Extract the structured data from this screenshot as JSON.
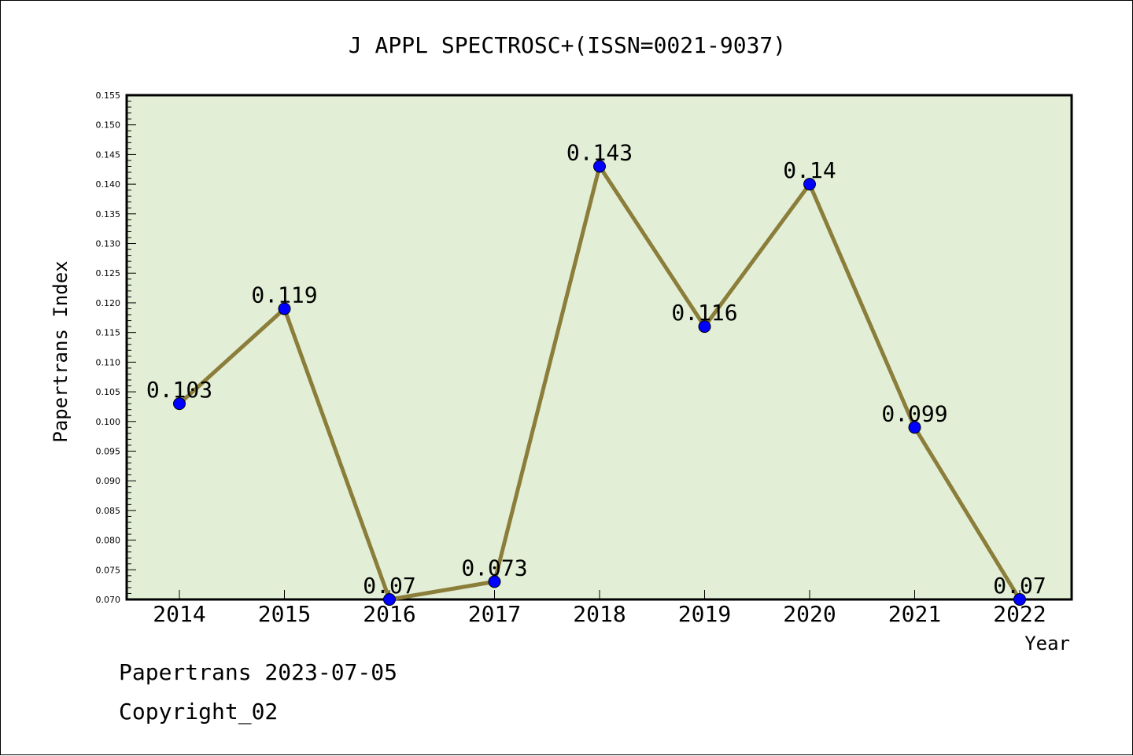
{
  "chart_data": {
    "type": "line",
    "title": "J APPL SPECTROSC+(ISSN=0021-9037)",
    "xlabel": "Year",
    "ylabel": "Papertrans Index",
    "categories": [
      "2014",
      "2015",
      "2016",
      "2017",
      "2018",
      "2019",
      "2020",
      "2021",
      "2022"
    ],
    "values": [
      0.103,
      0.119,
      0.07,
      0.073,
      0.143,
      0.116,
      0.14,
      0.099,
      0.07
    ],
    "data_labels": [
      "0.103",
      "0.119",
      "0.07",
      "0.073",
      "0.143",
      "0.116",
      "0.14",
      "0.099",
      "0.07"
    ],
    "ylim": [
      0.07,
      0.155
    ],
    "y_ticks": [
      "0.070",
      "0.075",
      "0.080",
      "0.085",
      "0.090",
      "0.095",
      "0.100",
      "0.105",
      "0.110",
      "0.115",
      "0.120",
      "0.125",
      "0.130",
      "0.135",
      "0.140",
      "0.145",
      "0.150",
      "0.155"
    ],
    "grid": false,
    "legend": "none",
    "colors": {
      "plot_background": "#e2efd6",
      "line": "#8b7d3a",
      "marker": "#0000ff"
    }
  },
  "footer": {
    "line1": "Papertrans 2023-07-05",
    "line2": "Copyright_02"
  }
}
